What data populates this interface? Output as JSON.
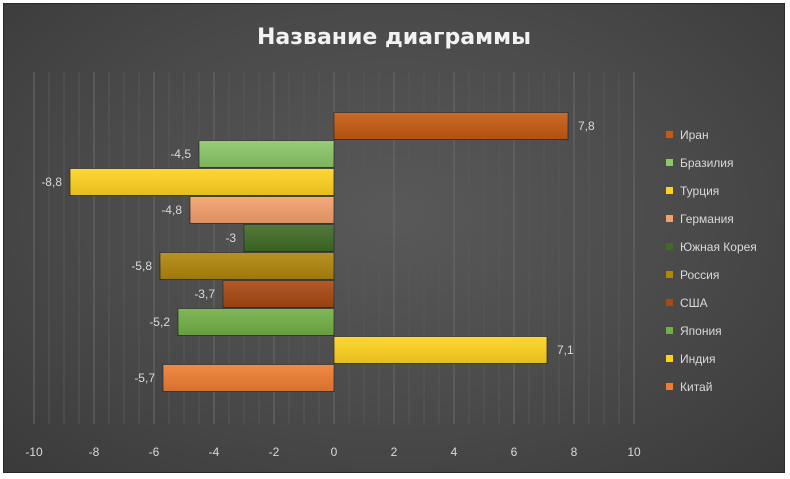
{
  "chart_data": {
    "type": "bar",
    "orientation": "horizontal",
    "title": "Название диаграммы",
    "xlim": [
      -10,
      10
    ],
    "ticks": [
      -10,
      -8,
      -6,
      -4,
      -2,
      0,
      2,
      4,
      6,
      8,
      10
    ],
    "grid": true,
    "legend_position": "right",
    "categories": [
      "Иран",
      "Бразилия",
      "Турция",
      "Германия",
      "Южная Корея",
      "Россия",
      "США",
      "Япония",
      "Индия",
      "Китай"
    ],
    "values": [
      7.8,
      -4.5,
      -8.8,
      -4.8,
      -3,
      -5.8,
      -3.7,
      -5.2,
      7.1,
      -5.7
    ],
    "value_labels": [
      "7,8",
      "-4,5",
      "-8,8",
      "-4,8",
      "-3",
      "-5,8",
      "-3,7",
      "-5,2",
      "7,1",
      "-5,7"
    ],
    "colors": [
      "#c55a11",
      "#8cc768",
      "#ffd21f",
      "#f4a06c",
      "#3f6b24",
      "#b0860b",
      "#a94811",
      "#72b046",
      "#ffd21f",
      "#ee7d31"
    ]
  }
}
